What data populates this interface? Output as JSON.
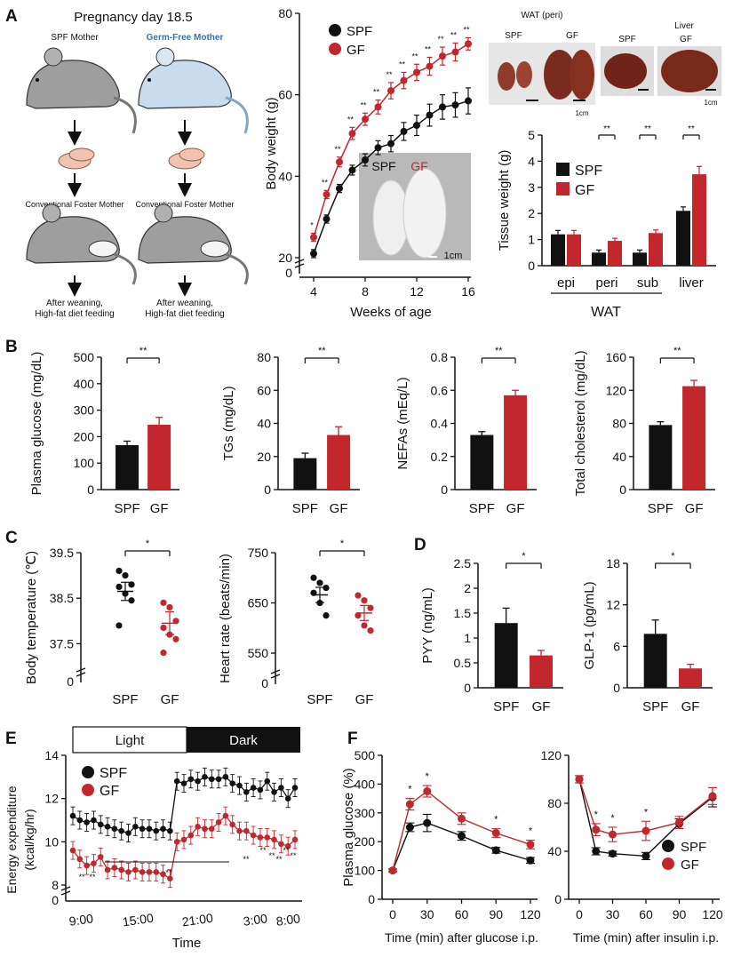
{
  "colors": {
    "spf": "#111111",
    "gf": "#c1272d",
    "axis": "#111111",
    "mouse_grey": "#9e9e9e",
    "mouse_blue": "#c8dced",
    "pup": "#efc3b0",
    "tissue": "#6e2418",
    "photo_bg": "#b9b9b9"
  },
  "panel_labels": {
    "A": "A",
    "B": "B",
    "C": "C",
    "D": "D",
    "E": "E",
    "F": "F"
  },
  "legend": {
    "spf": "SPF",
    "gf": "GF"
  },
  "diagram": {
    "title": "Pregnancy day 18.5",
    "spf_mother": "SPF Mother",
    "gf_mother": "Germ-Free Mother",
    "foster_left": "Conventional Foster Mother",
    "foster_right": "Conventional Foster Mother",
    "weaning_left_1": "After weaning,",
    "weaning_left_2": "High-fat diet feeding",
    "weaning_right_1": "After weaning,",
    "weaning_right_2": "High-fat diet feeding"
  },
  "photos": {
    "mice_spf": "SPF",
    "mice_gf": "GF",
    "mice_scale": "1cm",
    "wat_title": "WAT (peri)",
    "wat_spf": "SPF",
    "wat_gf": "GF",
    "wat_scale": "1cm",
    "liver_title": "Liver",
    "liver_spf": "SPF",
    "liver_gf": "GF",
    "liver_scale": "1cm"
  },
  "chart_data": [
    {
      "id": "A_bodyweight",
      "type": "line",
      "xlabel": "Weeks of age",
      "ylabel": "Body weight (g)",
      "xlim": [
        4,
        16
      ],
      "ylim": [
        20,
        80
      ],
      "xticks": [
        4,
        8,
        12,
        16
      ],
      "yticks": [
        20,
        40,
        60,
        80
      ],
      "y_axis_break": true,
      "y_zero_label": "0",
      "series": [
        {
          "name": "SPF",
          "x": [
            4,
            5,
            6,
            7,
            8,
            9,
            10,
            11,
            12,
            13,
            14,
            15,
            16
          ],
          "y": [
            21,
            29.5,
            37,
            41.5,
            44,
            47,
            48,
            51,
            52.5,
            55,
            57,
            57.5,
            58.5
          ],
          "err": [
            1,
            1,
            1,
            1.2,
            1.5,
            1.7,
            2,
            2.2,
            2.5,
            2.7,
            3,
            3,
            3.2
          ]
        },
        {
          "name": "GF",
          "x": [
            4,
            5,
            6,
            7,
            8,
            9,
            10,
            11,
            12,
            13,
            14,
            15,
            16
          ],
          "y": [
            25,
            35.5,
            43.5,
            50.5,
            54,
            57,
            61,
            63.5,
            65.5,
            67,
            69.5,
            70.5,
            72.5
          ],
          "err": [
            1,
            1,
            1.2,
            1.5,
            1.5,
            1.7,
            2,
            2,
            2,
            2.2,
            2.2,
            2.2,
            1.5
          ]
        }
      ],
      "sig_marks": [
        {
          "x": 4,
          "label": "*"
        },
        {
          "x": 5,
          "label": "**"
        },
        {
          "x": 6,
          "label": "**"
        },
        {
          "x": 7,
          "label": "**"
        },
        {
          "x": 8,
          "label": "**"
        },
        {
          "x": 9,
          "label": "**"
        },
        {
          "x": 10,
          "label": "**"
        },
        {
          "x": 11,
          "label": "**"
        },
        {
          "x": 12,
          "label": "**"
        },
        {
          "x": 13,
          "label": "**"
        },
        {
          "x": 14,
          "label": "**"
        },
        {
          "x": 15,
          "label": "**"
        },
        {
          "x": 16,
          "label": "**"
        }
      ]
    },
    {
      "id": "A_tissue",
      "type": "bar",
      "ylabel": "Tissue weight (g)",
      "ylim": [
        0,
        5
      ],
      "yticks": [
        0,
        1,
        2,
        3,
        4,
        5
      ],
      "categories": [
        "epi",
        "peri",
        "sub",
        "liver"
      ],
      "group_label": "WAT",
      "series": [
        {
          "name": "SPF",
          "values": [
            1.2,
            0.5,
            0.5,
            2.1
          ],
          "err": [
            0.15,
            0.1,
            0.1,
            0.15
          ]
        },
        {
          "name": "GF",
          "values": [
            1.2,
            0.95,
            1.25,
            3.5
          ],
          "err": [
            0.15,
            0.1,
            0.12,
            0.3
          ]
        }
      ],
      "sig": [
        "",
        "**",
        "**",
        "**"
      ]
    },
    {
      "id": "B_glucose",
      "type": "bar",
      "ylabel": "Plasma glucose (mg/dL)",
      "ylim": [
        0,
        500
      ],
      "yticks": [
        0,
        100,
        200,
        300,
        400,
        500
      ],
      "categories": [
        "SPF",
        "GF"
      ],
      "values": [
        168,
        245
      ],
      "err": [
        15,
        28
      ],
      "sig": "**"
    },
    {
      "id": "B_tg",
      "type": "bar",
      "ylabel": "TGs (mg/dL)",
      "ylim": [
        0,
        80
      ],
      "yticks": [
        0,
        20,
        40,
        60,
        80
      ],
      "categories": [
        "SPF",
        "GF"
      ],
      "values": [
        19,
        33
      ],
      "err": [
        3,
        5
      ],
      "sig": "**"
    },
    {
      "id": "B_nefa",
      "type": "bar",
      "ylabel": "NEFAs (mEq/L)",
      "ylim": [
        0,
        0.8
      ],
      "yticks": [
        "0",
        "0.2",
        "0.4",
        "0.6",
        "0.8"
      ],
      "categories": [
        "SPF",
        "GF"
      ],
      "values": [
        0.33,
        0.57
      ],
      "err": [
        0.02,
        0.03
      ],
      "sig": "**"
    },
    {
      "id": "B_chol",
      "type": "bar",
      "ylabel": "Total cholesterol (mg/dL)",
      "ylim": [
        0,
        160
      ],
      "yticks": [
        0,
        40,
        80,
        120,
        160
      ],
      "categories": [
        "SPF",
        "GF"
      ],
      "values": [
        78,
        125
      ],
      "err": [
        4,
        7
      ],
      "sig": "**"
    },
    {
      "id": "C_temp",
      "type": "scatter",
      "ylabel": "Body temperature (℃)",
      "ylim": [
        37.0,
        39.5
      ],
      "yticks": [
        "37.5",
        "38.5",
        "39.5"
      ],
      "y_zero_label": "0",
      "y_axis_break": true,
      "categories": [
        "SPF",
        "GF"
      ],
      "series": [
        {
          "name": "SPF",
          "points": [
            39.1,
            39.0,
            38.8,
            38.75,
            38.6,
            38.45,
            37.9
          ],
          "mean": 38.65,
          "sem": 0.2
        },
        {
          "name": "GF",
          "points": [
            38.4,
            38.3,
            38.0,
            37.85,
            37.7,
            37.6,
            37.3
          ],
          "mean": 37.95,
          "sem": 0.25
        }
      ],
      "sig": "*"
    },
    {
      "id": "C_heart",
      "type": "scatter",
      "ylabel": "Heart rate (beats/min)",
      "ylim": [
        520,
        750
      ],
      "yticks": [
        550,
        650,
        750
      ],
      "y_zero_label": "0",
      "y_axis_break": true,
      "categories": [
        "SPF",
        "GF"
      ],
      "series": [
        {
          "name": "SPF",
          "points": [
            700,
            690,
            680,
            670,
            650,
            625
          ],
          "mean": 666,
          "sem": 15
        },
        {
          "name": "GF",
          "points": [
            665,
            655,
            640,
            625,
            605,
            595
          ],
          "mean": 630,
          "sem": 15
        }
      ],
      "sig": "*"
    },
    {
      "id": "D_pyy",
      "type": "bar",
      "ylabel": "PYY (ng/mL)",
      "ylim": [
        0,
        2.5
      ],
      "yticks": [
        "0",
        "0.5",
        "1",
        "1.5",
        "2",
        "2.5"
      ],
      "categories": [
        "SPF",
        "GF"
      ],
      "values": [
        1.3,
        0.65
      ],
      "err": [
        0.3,
        0.1
      ],
      "sig": "*"
    },
    {
      "id": "D_glp1",
      "type": "bar",
      "ylabel": "GLP-1 (pg/mL)",
      "ylim": [
        0,
        18
      ],
      "yticks": [
        0,
        6,
        12,
        18
      ],
      "categories": [
        "SPF",
        "GF"
      ],
      "values": [
        7.8,
        2.8
      ],
      "err": [
        2,
        0.6
      ],
      "sig": "*"
    },
    {
      "id": "E_energy",
      "type": "line",
      "ylabel": "Energy expenditure (kcal/kg/hr)",
      "xlabel": "Time",
      "xticks": [
        "9:00",
        "15:00",
        "21:00",
        "3:00",
        "8:00"
      ],
      "ylim": [
        8,
        14
      ],
      "yticks": [
        8,
        10,
        12,
        14
      ],
      "y_zero_label": "0",
      "y_axis_break": true,
      "bar_light": "Light",
      "bar_dark": "Dark",
      "series": [
        {
          "name": "SPF",
          "y": [
            11.2,
            11.0,
            10.9,
            11.0,
            10.8,
            10.7,
            10.6,
            10.5,
            10.4,
            10.7,
            10.6,
            10.6,
            10.5,
            10.6,
            10.5,
            12.8,
            12.7,
            12.9,
            12.8,
            13.0,
            12.9,
            12.9,
            13.0,
            12.7,
            12.6,
            12.3,
            12.5,
            12.4,
            12.8,
            12.3,
            12.5,
            12.0,
            12.5
          ]
        },
        {
          "name": "GF",
          "y": [
            9.6,
            9.2,
            8.9,
            9.0,
            9.3,
            8.7,
            8.8,
            8.7,
            8.6,
            8.7,
            8.6,
            8.6,
            8.6,
            8.5,
            8.3,
            10.0,
            10.1,
            10.3,
            10.7,
            10.6,
            10.6,
            10.9,
            11.2,
            10.8,
            10.5,
            10.5,
            10.3,
            10.2,
            10.2,
            10.1,
            9.9,
            9.8,
            10.1
          ]
        }
      ],
      "sig_labels": [
        "**",
        "**",
        "**",
        "**",
        "**",
        "**",
        "**",
        "**",
        "**"
      ]
    },
    {
      "id": "F_gtt",
      "type": "line",
      "ylabel": "Plasma glucose (%)",
      "xlabel": "Time (min) after glucose i.p.",
      "x": [
        0,
        15,
        30,
        60,
        90,
        120
      ],
      "xticks": [
        0,
        30,
        60,
        90,
        120
      ],
      "ylim": [
        0,
        500
      ],
      "yticks": [
        0,
        100,
        200,
        300,
        400,
        500
      ],
      "series": [
        {
          "name": "SPF",
          "y": [
            100,
            250,
            265,
            220,
            170,
            135
          ],
          "err": [
            5,
            15,
            30,
            15,
            10,
            10
          ]
        },
        {
          "name": "GF",
          "y": [
            100,
            330,
            375,
            280,
            230,
            190
          ],
          "err": [
            5,
            20,
            20,
            20,
            15,
            15
          ]
        }
      ],
      "sig": [
        "",
        "*",
        "*",
        "",
        "*",
        "*"
      ]
    },
    {
      "id": "F_itt",
      "type": "line",
      "xlabel": "Time (min) after insulin i.p.",
      "x": [
        0,
        15,
        30,
        60,
        90,
        120
      ],
      "xticks": [
        0,
        30,
        60,
        90,
        120
      ],
      "ylim": [
        0,
        120
      ],
      "yticks": [
        0,
        40,
        80,
        120
      ],
      "series": [
        {
          "name": "SPF",
          "y": [
            100,
            40,
            38,
            36,
            63,
            85
          ],
          "err": [
            3,
            3,
            2,
            3,
            4,
            8
          ]
        },
        {
          "name": "GF",
          "y": [
            100,
            58,
            54,
            57,
            64,
            86
          ],
          "err": [
            3,
            5,
            6,
            8,
            5,
            7
          ]
        }
      ],
      "sig": [
        "",
        "*",
        "*",
        "*",
        "",
        ""
      ]
    }
  ]
}
